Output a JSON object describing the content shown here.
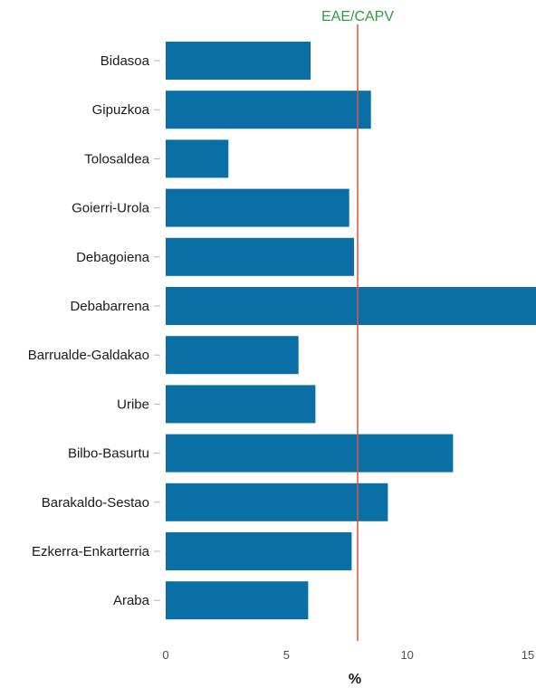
{
  "chart_data": {
    "type": "bar",
    "orientation": "horizontal",
    "categories": [
      "Bidasoa",
      "Gipuzkoa",
      "Tolosaldea",
      "Goierri-Urola",
      "Debagoiena",
      "Debabarrena",
      "Barrualde-Galdakao",
      "Uribe",
      "Bilbo-Basurtu",
      "Barakaldo-Sestao",
      "Ezkerra-Enkarterria",
      "Araba"
    ],
    "values": [
      6.0,
      8.5,
      2.6,
      7.6,
      7.8,
      15.5,
      5.5,
      6.2,
      11.9,
      9.2,
      7.7,
      5.9
    ],
    "xlabel": "%",
    "ylabel": "",
    "xlim": [
      0,
      15
    ],
    "xticks": [
      0,
      5,
      10,
      15
    ],
    "xtick_labels": [
      "0",
      "5",
      "10",
      "15"
    ],
    "reference_line": {
      "label": "EAE/CAPV",
      "value": 7.95,
      "color": "#e0533f",
      "label_color": "#2e9b3a"
    },
    "bar_color": "#0a6fa4",
    "grid": false,
    "legend": "none"
  }
}
